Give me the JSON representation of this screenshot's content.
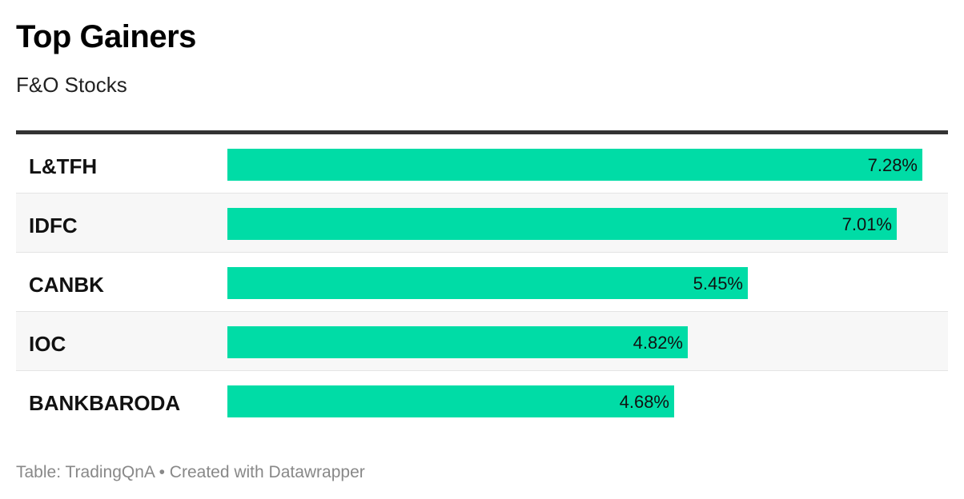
{
  "title": "Top Gainers",
  "subtitle": "F&O Stocks",
  "footer": "Table: TradingQnA • Created with Datawrapper",
  "bar_color": "#00dca6",
  "chart_data": {
    "type": "bar",
    "orientation": "horizontal",
    "title": "Top Gainers",
    "subtitle": "F&O Stocks",
    "xlim": [
      0,
      7.28
    ],
    "unit": "%",
    "rows": [
      {
        "name": "L&TFH",
        "value": 7.28,
        "label": "7.28%"
      },
      {
        "name": "IDFC",
        "value": 7.01,
        "label": "7.01%"
      },
      {
        "name": "CANBK",
        "value": 5.45,
        "label": "5.45%"
      },
      {
        "name": "IOC",
        "value": 4.82,
        "label": "4.82%"
      },
      {
        "name": "BANKBARODA",
        "value": 4.68,
        "label": "4.68%"
      }
    ]
  }
}
